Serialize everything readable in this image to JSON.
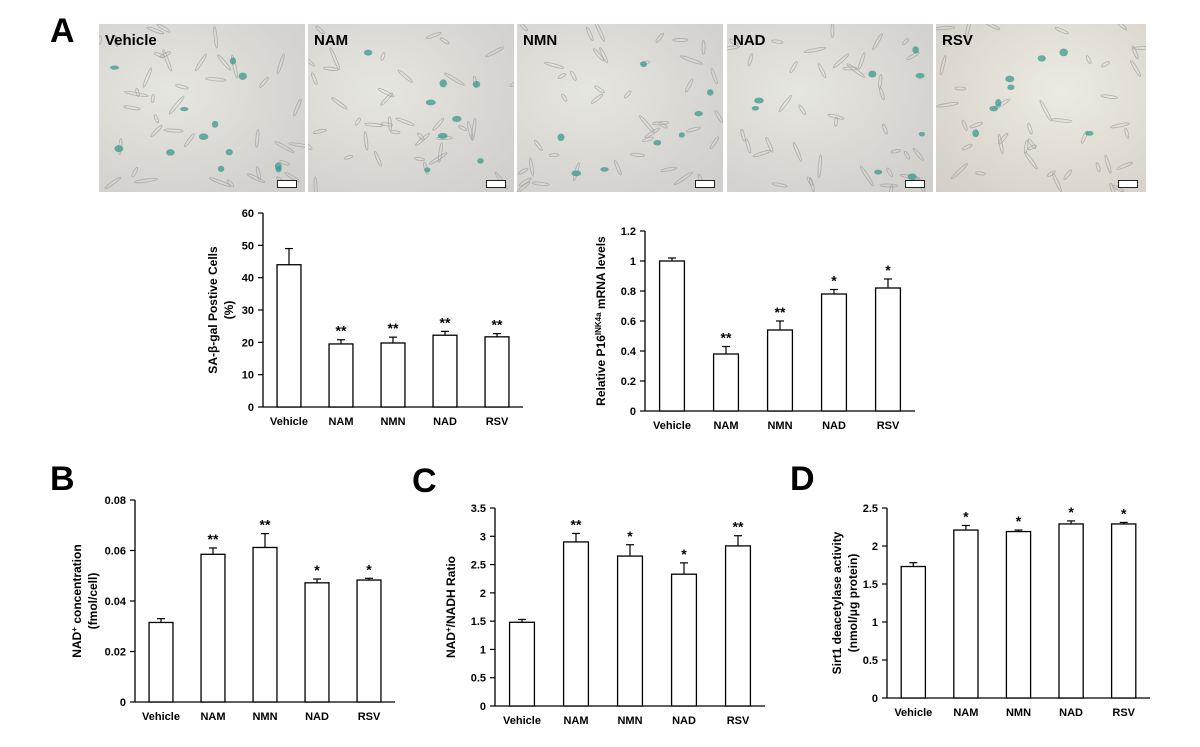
{
  "figure": {
    "panel_labels": [
      "A",
      "B",
      "C",
      "D"
    ],
    "micrograph_labels": [
      "Vehicle",
      "NAM",
      "NMN",
      "NAD",
      "RSV"
    ],
    "stain_color": "#3a9a8e"
  },
  "chart_data": [
    {
      "id": "a1",
      "type": "bar",
      "categories": [
        "Vehicle",
        "NAM",
        "NMN",
        "NAD",
        "RSV"
      ],
      "values": [
        44,
        19.5,
        19.8,
        22.2,
        21.7
      ],
      "errors": [
        5,
        1.3,
        1.8,
        1.2,
        1.0
      ],
      "significance": [
        "",
        "**",
        "**",
        "**",
        "**"
      ],
      "ylabel_lines": [
        "SA-β-gal Postive Cells",
        "(%)"
      ],
      "ylim": [
        0,
        60
      ],
      "yticks": [
        0,
        10,
        20,
        30,
        40,
        50,
        60
      ],
      "ytick_labels": [
        "0",
        "10",
        "20",
        "30",
        "40",
        "50",
        "60"
      ]
    },
    {
      "id": "a2",
      "type": "bar",
      "categories": [
        "Vehicle",
        "NAM",
        "NMN",
        "NAD",
        "RSV"
      ],
      "values": [
        1.0,
        0.38,
        0.54,
        0.78,
        0.82
      ],
      "errors": [
        0.02,
        0.05,
        0.06,
        0.03,
        0.06
      ],
      "significance": [
        "",
        "**",
        "**",
        "*",
        "*"
      ],
      "ylabel_parts": [
        "Relative P16",
        "INK4a",
        " mRNA levels"
      ],
      "ylim": [
        0,
        1.2
      ],
      "yticks": [
        0,
        0.2,
        0.4,
        0.6,
        0.8,
        1.0,
        1.2
      ],
      "ytick_labels": [
        "0",
        "0.2",
        "0.4",
        "0.6",
        "0.8",
        "1",
        "1.2"
      ]
    },
    {
      "id": "b",
      "type": "bar",
      "categories": [
        "Vehicle",
        "NAM",
        "NMN",
        "NAD",
        "RSV"
      ],
      "values": [
        0.0315,
        0.0585,
        0.0612,
        0.0472,
        0.0483
      ],
      "errors": [
        0.0015,
        0.0025,
        0.0055,
        0.0015,
        0.0007
      ],
      "significance": [
        "",
        "**",
        "**",
        "*",
        "*"
      ],
      "ylabel_parts": [
        "NAD",
        "+",
        " concentration"
      ],
      "ylabel_line2": "(fmol/cell)",
      "ylim": [
        0,
        0.08
      ],
      "yticks": [
        0,
        0.02,
        0.04,
        0.06,
        0.08
      ],
      "ytick_labels": [
        "0",
        "0.02",
        "0.04",
        "0.06",
        "0.08"
      ]
    },
    {
      "id": "c",
      "type": "bar",
      "categories": [
        "Vehicle",
        "NAM",
        "NMN",
        "NAD",
        "RSV"
      ],
      "values": [
        1.48,
        2.9,
        2.65,
        2.33,
        2.83
      ],
      "errors": [
        0.05,
        0.15,
        0.2,
        0.2,
        0.18
      ],
      "significance": [
        "",
        "**",
        "*",
        "*",
        "**"
      ],
      "ylabel_parts": [
        "NAD",
        "+",
        "/NADH  Ratio"
      ],
      "ylim": [
        0,
        3.5
      ],
      "yticks": [
        0,
        0.5,
        1,
        1.5,
        2,
        2.5,
        3,
        3.5
      ],
      "ytick_labels": [
        "0",
        "0.5",
        "1",
        "1.5",
        "2",
        "2.5",
        "3",
        "3.5"
      ]
    },
    {
      "id": "d",
      "type": "bar",
      "categories": [
        "Vehicle",
        "NAM",
        "NMN",
        "NAD",
        "RSV"
      ],
      "values": [
        1.73,
        2.21,
        2.19,
        2.29,
        2.29
      ],
      "errors": [
        0.05,
        0.06,
        0.02,
        0.04,
        0.02
      ],
      "significance": [
        "",
        "*",
        "*",
        "*",
        "*"
      ],
      "ylabel_lines": [
        "Sirt1 deacetylase activity",
        "(nmol/μg protein)"
      ],
      "ylim": [
        0,
        2.5
      ],
      "yticks": [
        0,
        0.5,
        1,
        1.5,
        2,
        2.5
      ],
      "ytick_labels": [
        "0",
        "0.5",
        "1",
        "1.5",
        "2",
        "2.5"
      ]
    }
  ]
}
